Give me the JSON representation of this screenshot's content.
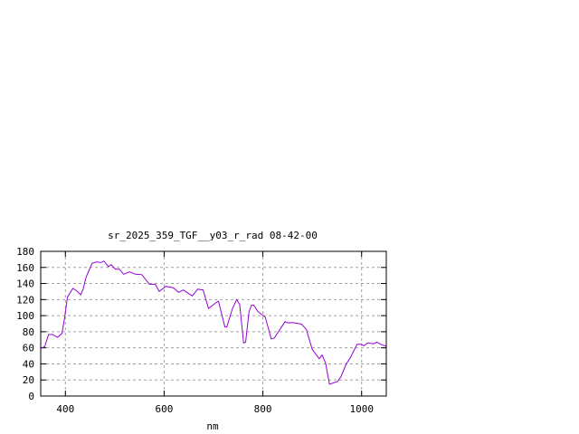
{
  "chart_data": {
    "type": "line",
    "title": "sr_2025_359_TGF__y03_r_rad 08-42-00",
    "xlabel": "nm",
    "ylabel": "",
    "xlim": [
      350,
      1050
    ],
    "ylim": [
      0,
      180
    ],
    "xticks": [
      400,
      600,
      800,
      1000
    ],
    "yticks": [
      0,
      20,
      40,
      60,
      80,
      100,
      120,
      140,
      160,
      180
    ],
    "grid": true,
    "legend": "none",
    "line_color": "#9400d3",
    "series": [
      {
        "x": [
          352,
          358,
          366,
          374,
          384,
          393,
          399,
          404,
          415,
          423,
          431,
          436,
          442,
          454,
          463,
          472,
          478,
          487,
          493,
          501,
          509,
          518,
          530,
          542,
          555,
          570,
          582,
          590,
          603,
          619,
          629,
          639,
          646,
          657,
          668,
          679,
          690,
          706,
          710,
          723,
          727,
          738,
          747,
          753,
          761,
          765,
          772,
          777,
          782,
          790,
          805,
          817,
          823,
          845,
          851,
          860,
          878,
          888,
          900,
          914,
          920,
          927,
          935,
          951,
          958,
          969,
          976,
          991,
          999,
          1005,
          1012,
          1024,
          1031,
          1040,
          1049
        ],
        "y": [
          60,
          61.5,
          76.5,
          76.5,
          73,
          78,
          99,
          123,
          134,
          131,
          126,
          133,
          148,
          165,
          167,
          166,
          168,
          161,
          163.5,
          158,
          158,
          151.5,
          154.5,
          151.5,
          151,
          139,
          139,
          130,
          136.5,
          134.5,
          129,
          132,
          129,
          124.5,
          133,
          132,
          109,
          116.5,
          118,
          86,
          86,
          108,
          120,
          114,
          66,
          67,
          105,
          113,
          113,
          105,
          98,
          71,
          72,
          92.5,
          91,
          91.5,
          89.5,
          83,
          58,
          46.5,
          51,
          41,
          14.6,
          18,
          24,
          40,
          46.5,
          64.5,
          64.5,
          62.5,
          66,
          65,
          67,
          64,
          62
        ]
      }
    ]
  }
}
